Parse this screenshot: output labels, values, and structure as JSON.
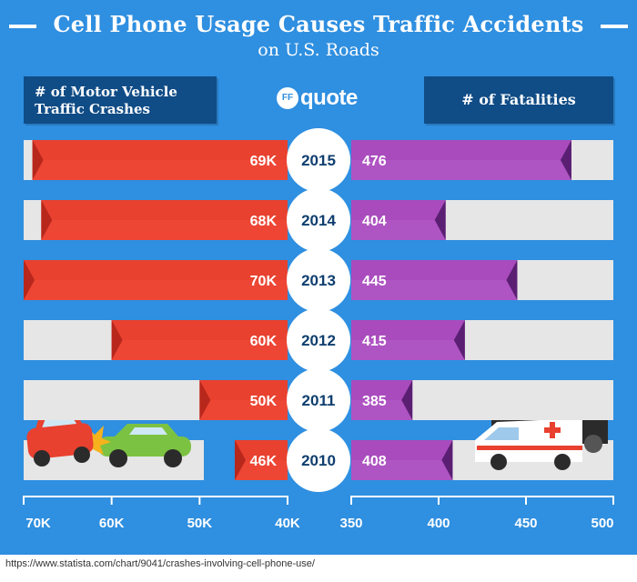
{
  "header": {
    "title": "Cell Phone Usage Causes Traffic Accidents",
    "subtitle": "on U.S. Roads"
  },
  "legend": {
    "left": "# of Motor Vehicle Traffic Crashes",
    "right": "# of Fatalities"
  },
  "logo": {
    "mark": "FF",
    "word": "quote"
  },
  "source": "https://www.statista.com/chart/9041/crashes-involving-cell-phone-use/",
  "colors": {
    "background": "#2f8fe0",
    "crashes": "#e8412f",
    "fatalities": "#a94bbd",
    "track": "#e6e6e6",
    "legend_box": "#104c86",
    "year_text": "#0f3e6e"
  },
  "icons": [
    "crashed-cars-illustration",
    "ambulance-illustration"
  ],
  "chart_data": {
    "type": "bar",
    "categories": [
      "2015",
      "2014",
      "2013",
      "2012",
      "2011",
      "2010"
    ],
    "series": [
      {
        "name": "# of Motor Vehicle Traffic Crashes",
        "values": [
          69,
          68,
          70,
          60,
          50,
          46
        ],
        "labels": [
          "69K",
          "68K",
          "70K",
          "60K",
          "50K",
          "46K"
        ],
        "axis_range": [
          40,
          70
        ],
        "axis_ticks": [
          "70K",
          "60K",
          "50K",
          "40K"
        ],
        "tick_values": [
          70,
          60,
          50,
          40
        ],
        "direction": "right-to-left"
      },
      {
        "name": "# of Fatalities",
        "values": [
          476,
          404,
          445,
          415,
          385,
          408
        ],
        "labels": [
          "476",
          "404",
          "445",
          "415",
          "385",
          "408"
        ],
        "axis_range": [
          350,
          500
        ],
        "axis_ticks": [
          "350",
          "400",
          "450",
          "500"
        ],
        "tick_values": [
          350,
          400,
          450,
          500
        ],
        "direction": "left-to-right"
      }
    ],
    "legend_position": "top",
    "grid": false
  }
}
